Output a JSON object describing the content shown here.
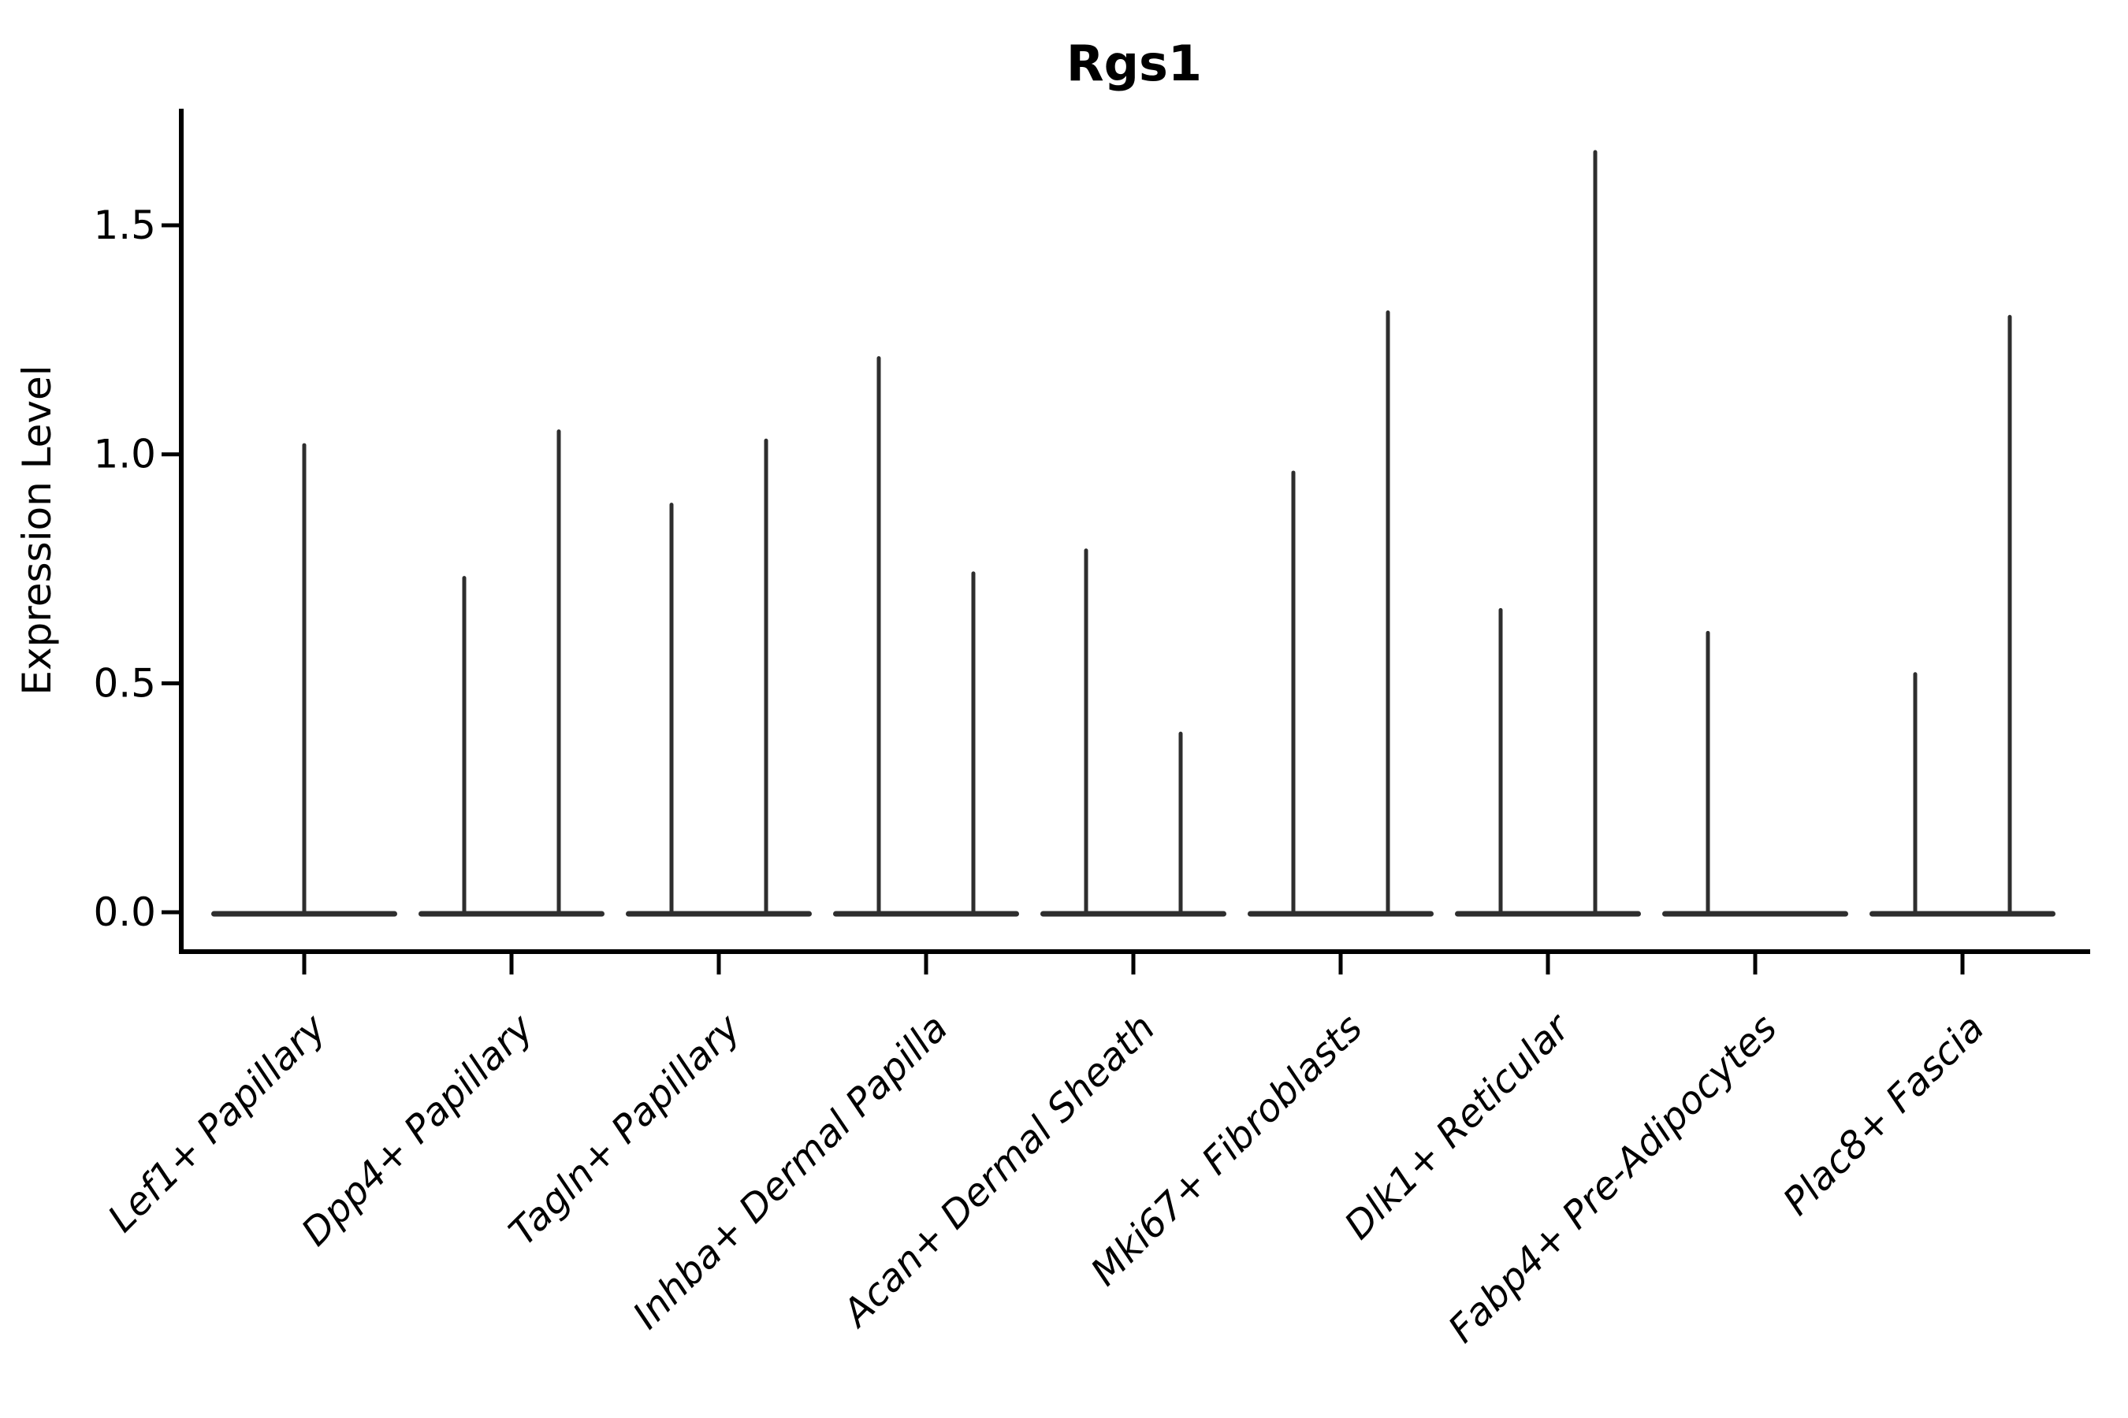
{
  "title": "Rgs1",
  "chart_data": {
    "type": "violin",
    "title": "Rgs1",
    "xlabel": "",
    "ylabel": "Expression Level",
    "ylim": [
      0,
      1.75
    ],
    "yticks": [
      0.0,
      0.5,
      1.0,
      1.5
    ],
    "ytick_labels": [
      "0.0",
      "0.5",
      "1.0",
      "1.5"
    ],
    "grid": false,
    "legend_position": "none",
    "background_color": "#ffffff",
    "violin_line_color": "#2e2e2e",
    "axis_color": "#000000",
    "x_tick_label_style": "italic, rotated 45deg, right-anchored",
    "note": "Most cells have zero expression, giving each violin a wide flat base at y=0 with a thin density spike rising to the group maximum. Two dodged violins per category except Lef1+ Papillary (one centered violin); the right violin of Fabp4+ Pre-Adipocytes is flat at 0 (no spike).",
    "categories": [
      "Lef1+ Papillary",
      "Dpp4+ Papillary",
      "Tagln+ Papillary",
      "Inhba+ Dermal Papilla",
      "Acan+ Dermal Sheath",
      "Mki67+ Fibroblasts",
      "Dlk1+ Reticular",
      "Fabp4+ Pre-Adipocytes",
      "Plac8+ Fascia"
    ],
    "violins": [
      {
        "category": "Lef1+ Papillary",
        "groups": [
          {
            "position": "center",
            "spike_max": 1.02
          }
        ]
      },
      {
        "category": "Dpp4+ Papillary",
        "groups": [
          {
            "position": "left",
            "spike_max": 0.73
          },
          {
            "position": "right",
            "spike_max": 1.05
          }
        ]
      },
      {
        "category": "Tagln+ Papillary",
        "groups": [
          {
            "position": "left",
            "spike_max": 0.89
          },
          {
            "position": "right",
            "spike_max": 1.03
          }
        ]
      },
      {
        "category": "Inhba+ Dermal Papilla",
        "groups": [
          {
            "position": "left",
            "spike_max": 1.21
          },
          {
            "position": "right",
            "spike_max": 0.74
          }
        ]
      },
      {
        "category": "Acan+ Dermal Sheath",
        "groups": [
          {
            "position": "left",
            "spike_max": 0.79
          },
          {
            "position": "right",
            "spike_max": 0.39
          }
        ]
      },
      {
        "category": "Mki67+ Fibroblasts",
        "groups": [
          {
            "position": "left",
            "spike_max": 0.96
          },
          {
            "position": "right",
            "spike_max": 1.31
          }
        ]
      },
      {
        "category": "Dlk1+ Reticular",
        "groups": [
          {
            "position": "left",
            "spike_max": 0.66
          },
          {
            "position": "right",
            "spike_max": 1.66
          }
        ]
      },
      {
        "category": "Fabp4+ Pre-Adipocytes",
        "groups": [
          {
            "position": "left",
            "spike_max": 0.61
          },
          {
            "position": "right",
            "spike_max": 0.0
          }
        ]
      },
      {
        "category": "Plac8+ Fascia",
        "groups": [
          {
            "position": "left",
            "spike_max": 0.52
          },
          {
            "position": "right",
            "spike_max": 1.3
          }
        ]
      }
    ]
  }
}
